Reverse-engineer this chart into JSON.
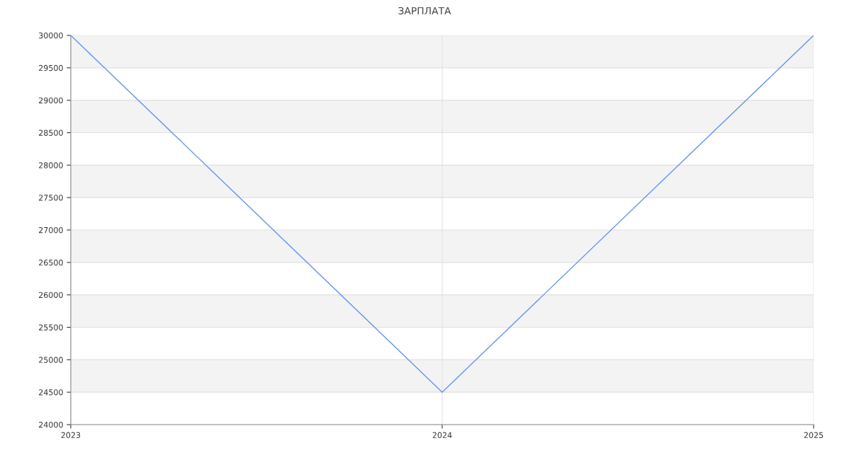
{
  "chart_data": {
    "type": "line",
    "title": "ЗАРПЛАТА",
    "x": [
      2023,
      2024,
      2025
    ],
    "series": [
      {
        "color": "#6495ed",
        "values": [
          30000,
          24500,
          30000
        ]
      }
    ],
    "xlim": [
      2023,
      2025
    ],
    "xticks": [
      2023,
      2024,
      2025
    ],
    "ylim": [
      24000,
      30000
    ],
    "yticks": [
      24000,
      24500,
      25000,
      25500,
      26000,
      26500,
      27000,
      27500,
      28000,
      28500,
      29000,
      29500,
      30000
    ],
    "grid": true,
    "marker": "none",
    "line_style": "solid",
    "legend": false
  }
}
